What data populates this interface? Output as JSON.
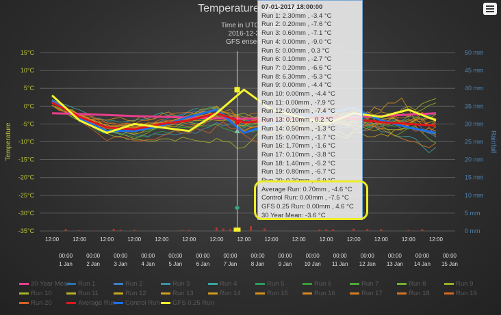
{
  "header": {
    "title": "Temperature 850 hPa",
    "subtitle_line1": "Time in UTC lat=52",
    "subtitle_line2": "2016-12-31 06",
    "subtitle_line3": "GFS ensembles"
  },
  "menu": {
    "icon": "hamburger-menu-icon"
  },
  "tooltip": {
    "header": "07-01-2017 18:00:00",
    "rows": [
      "Run 1: 2.30mm , -3.4 °C",
      "Run 2: 0.20mm , -7.6 °C",
      "Run 3: 0.60mm , -7.1 °C",
      "Run 4: 0.00mm , -9.0 °C",
      "Run 5: 0.00mm , 0.3 °C",
      "Run 6: 0.10mm , -2.7 °C",
      "Run 7: 0.20mm , -6.6 °C",
      "Run 8: 6.30mm , -5.3 °C",
      "Run 9: 0.00mm , -4.4 °C",
      "Run 10: 0.00mm , -4.4 °C",
      "Run 11: 0.00mm , -7.9 °C",
      "Run 12: 0.00mm , -7.4 °C",
      "Run 13: 0.10mm , 0.2 °C",
      "Run 14: 0.50mm , -1.3 °C",
      "Run 15: 0.00mm , -1.7 °C",
      "Run 16: 1.70mm , -1.6 °C",
      "Run 17: 0.10mm , -3.8 °C",
      "Run 18: 1.40mm , -5.2 °C",
      "Run 19: 0.80mm , -6.7 °C",
      "Run 20: 0.30mm , -6.9 °C"
    ],
    "highlight_rows": [
      "Average Run: 0.70mm , -4.6 °C",
      "Control Run: 0.00mm , -7.5 °C",
      "GFS 0.25 Run: 0.00mm , 4.6 °C",
      "30 Year Mean: -3.6 °C"
    ]
  },
  "chart_data": {
    "type": "line",
    "y_left": {
      "label": "Temperature",
      "min": -35,
      "max": 15,
      "ticks": [
        15,
        10,
        5,
        0,
        -5,
        -10,
        -15,
        -20,
        -25,
        -30,
        -35
      ],
      "unit": "°C",
      "color": "#b9c23a"
    },
    "y_right": {
      "label": "Rainfall",
      "min": 0,
      "max": 50,
      "ticks": [
        50,
        45,
        40,
        35,
        30,
        25,
        20,
        15,
        10,
        5,
        0
      ],
      "unit": "mm",
      "color": "#4f86b8"
    },
    "x_days": [
      "1 Jan",
      "2 Jan",
      "3 Jan",
      "4 Jan",
      "5 Jan",
      "6 Jan",
      "7 Jan",
      "8 Jan",
      "9 Jan",
      "10 Jan",
      "11 Jan",
      "12 Jan",
      "13 Jan",
      "14 Jan",
      "15 Jan"
    ],
    "x_tick_label_12": "12:00",
    "x_tick_label_00": "00:00",
    "grid": true,
    "legend_position": "bottom",
    "legend": [
      {
        "name": "30 Year Mean",
        "color": "#e83e8c"
      },
      {
        "name": "Run 1",
        "color": "#2c6fb0"
      },
      {
        "name": "Run 2",
        "color": "#3a7fc4"
      },
      {
        "name": "Run 3",
        "color": "#3e8fa8"
      },
      {
        "name": "Run 4",
        "color": "#3aa3a0"
      },
      {
        "name": "Run 5",
        "color": "#2e9a5c"
      },
      {
        "name": "Run 6",
        "color": "#3b9b3b"
      },
      {
        "name": "Run 7",
        "color": "#4caa38"
      },
      {
        "name": "Run 8",
        "color": "#73b030"
      },
      {
        "name": "Run 9",
        "color": "#96b12a"
      },
      {
        "name": "Run 10",
        "color": "#aab526"
      },
      {
        "name": "Run 11",
        "color": "#bdb122"
      },
      {
        "name": "Run 12",
        "color": "#c9ab1e"
      },
      {
        "name": "Run 13",
        "color": "#cfa11c"
      },
      {
        "name": "Run 14",
        "color": "#d49a1c"
      },
      {
        "name": "Run 15",
        "color": "#d8921c"
      },
      {
        "name": "Run 16",
        "color": "#d9881e"
      },
      {
        "name": "Run 17",
        "color": "#d97e20"
      },
      {
        "name": "Run 18",
        "color": "#d87422"
      },
      {
        "name": "Run 19",
        "color": "#d76a24"
      },
      {
        "name": "Run 20",
        "color": "#d66026"
      },
      {
        "name": "Average Run",
        "color": "#e0161c"
      },
      {
        "name": "Control Run",
        "color": "#1f6fe8"
      },
      {
        "name": "GFS 0.25 Run",
        "color": "#f5f52e"
      }
    ],
    "highlight_series": {
      "thirty_year_mean": {
        "color": "#e83e8c",
        "values": [
          -2,
          -2.2,
          -2.5,
          -2.8,
          -3,
          -3.2,
          -3.4,
          -3.5,
          -3.6,
          -3.6,
          -3.4,
          -3.1,
          -2.8,
          -2.4,
          -2
        ]
      },
      "average_run": {
        "color": "#e0161c",
        "values": [
          1,
          -3,
          -6,
          -6.5,
          -5,
          -4,
          -2,
          -4.6,
          -4,
          -3.5,
          -3,
          -3.6,
          -4.5,
          -5,
          -5.5
        ]
      },
      "control_run": {
        "color": "#1f6fe8",
        "values": [
          1.5,
          -3.5,
          -7,
          -7,
          -5.5,
          -3,
          -1,
          -7.5,
          -5,
          -3,
          -2,
          -0.5,
          -4,
          -6,
          -7.5
        ]
      },
      "gfs_025_run": {
        "color": "#f5f52e",
        "values": [
          3,
          -4,
          -7.5,
          -5,
          -6,
          -7,
          -2,
          4.6,
          -1,
          -3,
          -5,
          -2,
          -3,
          -1,
          -4
        ]
      }
    },
    "hover_time": "07-01-2017 18:00:00"
  }
}
